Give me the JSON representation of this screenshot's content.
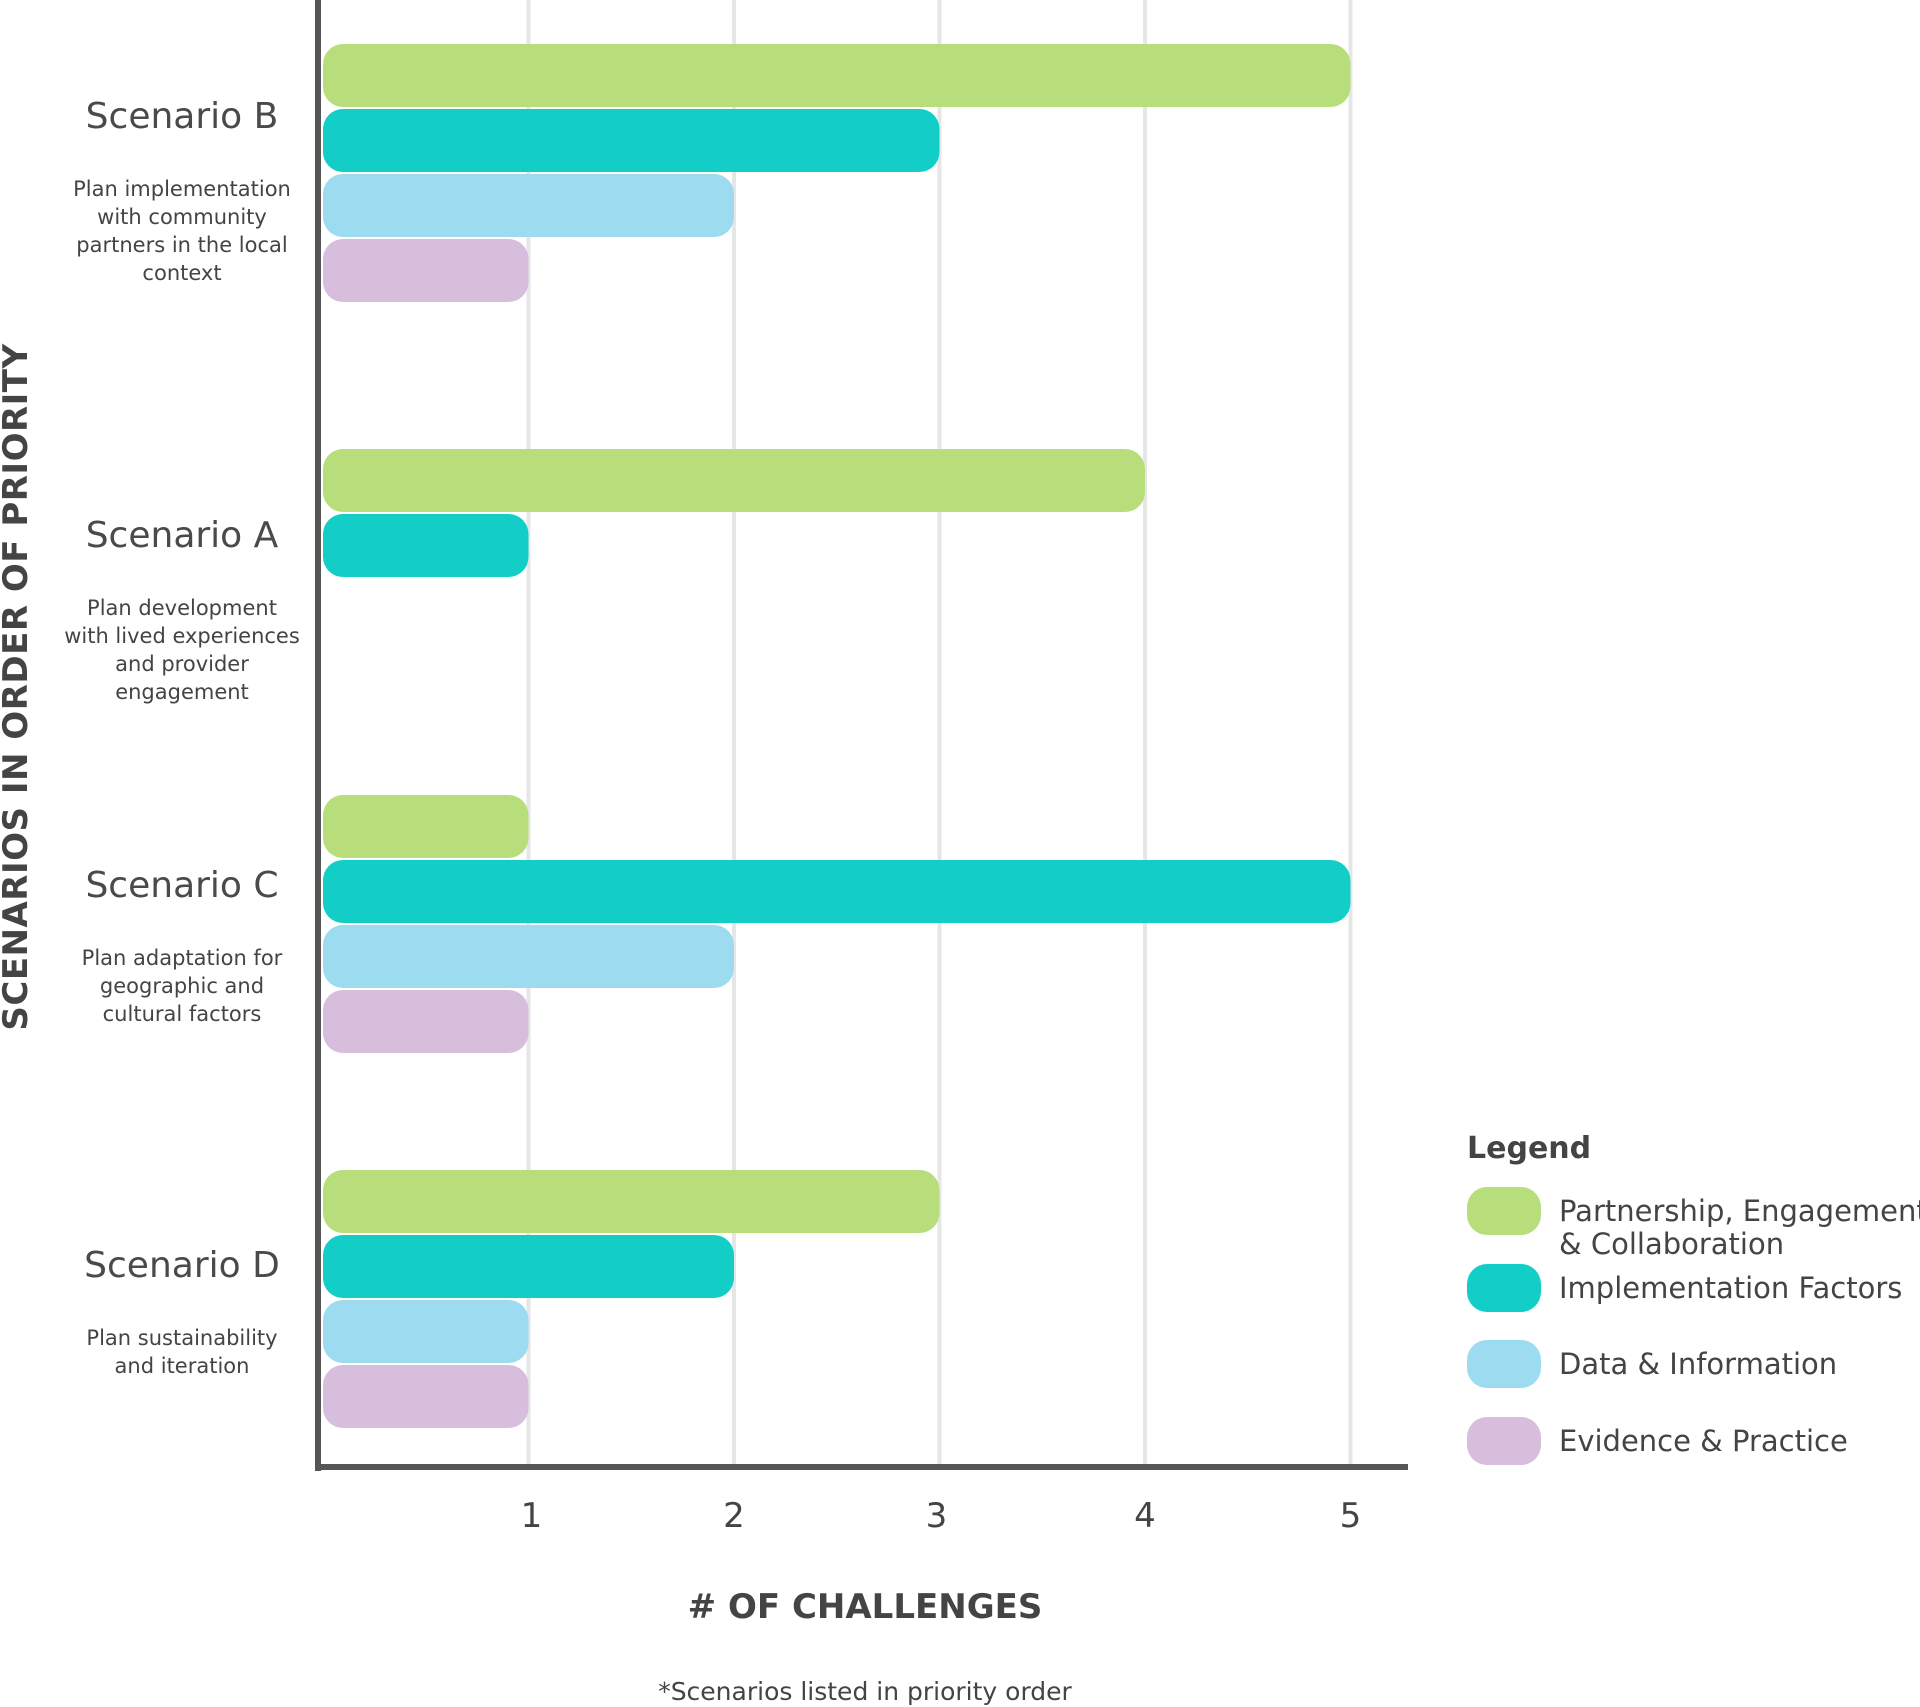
{
  "chart_data": {
    "type": "bar",
    "orientation": "horizontal",
    "ylabel": "SCENARIOS IN ORDER OF PRIORITY",
    "xlabel": "# OF CHALLENGES",
    "footnote": "*Scenarios listed in priority order",
    "xlim": [
      0,
      5.25
    ],
    "xticks": [
      1,
      2,
      3,
      4,
      5
    ],
    "grid": true,
    "legend_position": "bottom-right",
    "categories": [
      {
        "name": "Scenario B",
        "description": [
          "Plan implementation",
          "with community",
          "partners in the local",
          "context"
        ]
      },
      {
        "name": "Scenario A",
        "description": [
          "Plan development",
          "with lived experiences",
          "and provider",
          "engagement"
        ]
      },
      {
        "name": "Scenario C",
        "description": [
          "Plan adaptation for",
          "geographic and",
          "cultural factors"
        ]
      },
      {
        "name": "Scenario D",
        "description": [
          "Plan sustainability",
          "and iteration"
        ]
      }
    ],
    "series": [
      {
        "name": "Partnership, Engagement & Collaboration",
        "legend_lines": [
          "Partnership, Engagement",
          "& Collaboration"
        ],
        "color": "#b8de7c",
        "values": [
          5,
          4,
          1,
          3
        ]
      },
      {
        "name": "Implementation Factors",
        "legend_lines": [
          "Implementation Factors"
        ],
        "color": "#13cec7",
        "values": [
          3,
          1,
          5,
          2
        ]
      },
      {
        "name": "Data & Information",
        "legend_lines": [
          "Data & Information"
        ],
        "color": "#9ddbf0",
        "values": [
          2,
          null,
          2,
          1
        ]
      },
      {
        "name": "Evidence & Practice",
        "legend_lines": [
          "Evidence & Practice"
        ],
        "color": "#d7bedd",
        "values": [
          1,
          null,
          1,
          1
        ]
      }
    ]
  },
  "legend": {
    "title": "Legend"
  },
  "colors": {
    "axis": "#555555",
    "grid": "#e6e6e6",
    "text": "#444444"
  }
}
